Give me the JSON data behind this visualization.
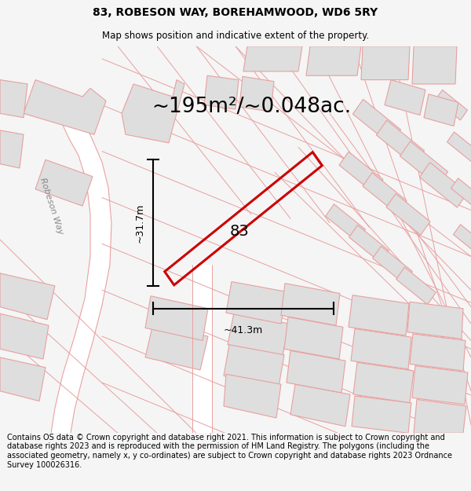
{
  "title_line1": "83, ROBESON WAY, BOREHAMWOOD, WD6 5RY",
  "title_line2": "Map shows position and indicative extent of the property.",
  "area_label": "~195m²/~0.048ac.",
  "property_number": "83",
  "dim_height": "~31.7m",
  "dim_width": "~41.3m",
  "street_label": "Robeson Way",
  "footer": "Contains OS data © Crown copyright and database right 2021. This information is subject to Crown copyright and database rights 2023 and is reproduced with the permission of HM Land Registry. The polygons (including the associated geometry, namely x, y co-ordinates) are subject to Crown copyright and database rights 2023 Ordnance Survey 100026316.",
  "bg_color": "#f5f5f5",
  "map_bg": "#f9f9f9",
  "building_fill": "#dedede",
  "building_stroke": "#e8a0a0",
  "road_stroke": "#e8a0a0",
  "property_stroke": "#cc0000",
  "property_fill": "none",
  "title_fontsize": 10,
  "subtitle_fontsize": 8.5,
  "area_fontsize": 19,
  "label_fontsize": 14,
  "footer_fontsize": 7,
  "dim_fontsize": 9,
  "street_fontsize": 8
}
